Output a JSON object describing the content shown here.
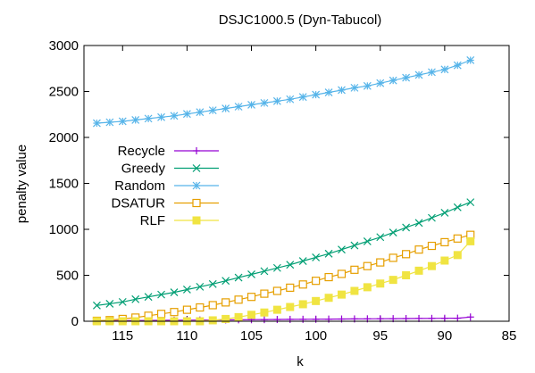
{
  "chart_data": {
    "type": "line",
    "title": "DSJC1000.5 (Dyn-Tabucol)",
    "xlabel": "k",
    "ylabel": "penalty value",
    "xlim": [
      118,
      85
    ],
    "x_reversed": true,
    "ylim": [
      0,
      3000
    ],
    "xticks": [
      115,
      110,
      105,
      100,
      95,
      90,
      85
    ],
    "yticks": [
      0,
      500,
      1000,
      1500,
      2000,
      2500,
      3000
    ],
    "legend_position": "middle-left",
    "x": [
      117,
      116,
      115,
      114,
      113,
      112,
      111,
      110,
      109,
      108,
      107,
      106,
      105,
      104,
      103,
      102,
      101,
      100,
      99,
      98,
      97,
      96,
      95,
      94,
      93,
      92,
      91,
      90,
      89,
      88
    ],
    "series": [
      {
        "name": "Recycle",
        "color": "#9400d3",
        "marker": "plus",
        "values": [
          5,
          6,
          7,
          8,
          9,
          10,
          11,
          12,
          13,
          14,
          15,
          16,
          17,
          18,
          19,
          20,
          21,
          22,
          23,
          24,
          25,
          26,
          27,
          28,
          29,
          30,
          31,
          32,
          33,
          46
        ]
      },
      {
        "name": "Greedy",
        "color": "#009e73",
        "marker": "x",
        "values": [
          172,
          190,
          210,
          240,
          265,
          290,
          315,
          345,
          375,
          405,
          440,
          475,
          510,
          545,
          580,
          615,
          655,
          695,
          735,
          780,
          825,
          870,
          915,
          965,
          1020,
          1070,
          1125,
          1180,
          1240,
          1295
        ]
      },
      {
        "name": "Random",
        "color": "#56b4e9",
        "marker": "star",
        "values": [
          2155,
          2165,
          2175,
          2190,
          2205,
          2220,
          2235,
          2255,
          2275,
          2295,
          2315,
          2335,
          2355,
          2375,
          2395,
          2415,
          2440,
          2465,
          2490,
          2515,
          2540,
          2560,
          2590,
          2620,
          2650,
          2680,
          2710,
          2740,
          2785,
          2840
        ]
      },
      {
        "name": "DSATUR",
        "color": "#e69f00",
        "marker": "open-square",
        "values": [
          5,
          12,
          25,
          40,
          60,
          80,
          100,
          125,
          150,
          175,
          205,
          235,
          265,
          300,
          330,
          365,
          400,
          440,
          480,
          515,
          560,
          600,
          640,
          690,
          730,
          780,
          820,
          860,
          900,
          940
        ]
      },
      {
        "name": "RLF",
        "color": "#f0e442",
        "marker": "filled-square",
        "values": [
          0,
          0,
          0,
          0,
          0,
          0,
          0,
          0,
          0,
          10,
          25,
          45,
          70,
          95,
          125,
          155,
          185,
          220,
          255,
          290,
          330,
          370,
          410,
          450,
          500,
          550,
          600,
          660,
          720,
          870
        ]
      }
    ]
  }
}
